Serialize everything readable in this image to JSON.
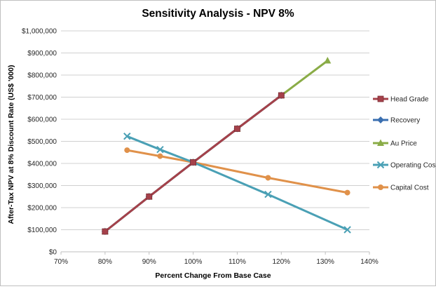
{
  "chart_data": {
    "type": "line",
    "title": "Sensitivity Analysis - NPV 8%",
    "xlabel": "Percent Change  From Base Case",
    "ylabel": "After-Tax NPV at 8% Discount Rate (US$ '000)",
    "xlim": [
      70,
      140
    ],
    "ylim": [
      0,
      1000000
    ],
    "x_ticks": [
      "70%",
      "80%",
      "90%",
      "100%",
      "110%",
      "120%",
      "130%",
      "140%"
    ],
    "y_ticks": [
      "$0",
      "$100,000",
      "$200,000",
      "$300,000",
      "$400,000",
      "$500,000",
      "$600,000",
      "$700,000",
      "$800,000",
      "$900,000",
      "$1,000,000"
    ],
    "grid": true,
    "legend_position": "right",
    "series": [
      {
        "name": "Head Grade",
        "color": "#a5414a",
        "marker": "square",
        "points": [
          [
            80,
            92000
          ],
          [
            90,
            250000
          ],
          [
            100,
            405000
          ],
          [
            110,
            557000
          ],
          [
            120,
            708000
          ]
        ]
      },
      {
        "name": "Recovery",
        "color": "#3a6fb0",
        "marker": "diamond",
        "points": [
          [
            80,
            92000
          ],
          [
            90,
            250000
          ],
          [
            100,
            405000
          ],
          [
            110,
            557000
          ],
          [
            120,
            708000
          ]
        ]
      },
      {
        "name": "Au Price",
        "color": "#8aac47",
        "marker": "triangle",
        "points": [
          [
            80,
            92000
          ],
          [
            90,
            250000
          ],
          [
            100,
            405000
          ],
          [
            110,
            557000
          ],
          [
            120,
            708000
          ],
          [
            130.5,
            865000
          ]
        ]
      },
      {
        "name": "Operating Cost",
        "color": "#4aa0b5",
        "marker": "x",
        "points": [
          [
            85,
            523000
          ],
          [
            92.5,
            463000
          ],
          [
            100,
            405000
          ],
          [
            117,
            260000
          ],
          [
            135,
            100000
          ]
        ]
      },
      {
        "name": "Capital Cost",
        "color": "#e0914a",
        "marker": "circle",
        "points": [
          [
            85,
            460000
          ],
          [
            92.5,
            433000
          ],
          [
            100,
            405000
          ],
          [
            117,
            335000
          ],
          [
            135,
            268000
          ]
        ]
      }
    ]
  }
}
